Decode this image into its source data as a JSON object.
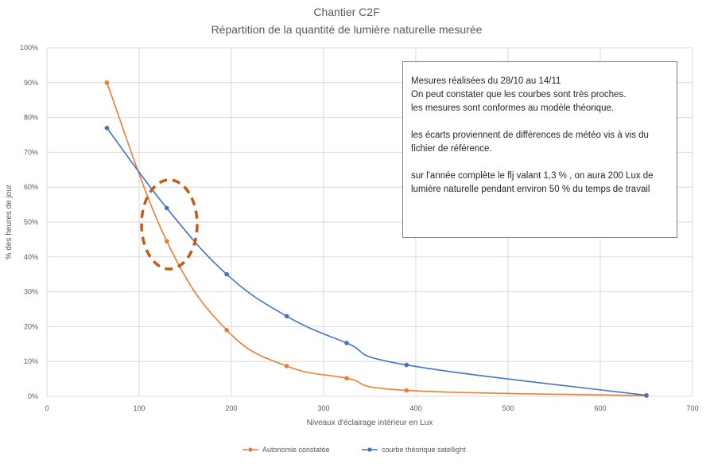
{
  "chart_data": {
    "type": "line",
    "title": "Chantier C2F",
    "subtitle": "Répartition de la quantité de lumière naturelle mesurée",
    "xlabel": "Niveaux d'éclairage intérieur en Lux",
    "ylabel": "% des heures de jour",
    "xlim": [
      0,
      700
    ],
    "ylim": [
      0,
      100
    ],
    "x_ticks": [
      0,
      100,
      200,
      300,
      400,
      500,
      600,
      700
    ],
    "y_ticks": [
      "0%",
      "10%",
      "20%",
      "30%",
      "40%",
      "50%",
      "60%",
      "70%",
      "80%",
      "90%",
      "100%"
    ],
    "grid": true,
    "legend_position": "bottom",
    "series": [
      {
        "name": "Autonomie constatée",
        "color": "#ed7d31",
        "x": [
          65,
          130,
          195,
          260,
          325,
          390,
          650
        ],
        "y": [
          90,
          44.5,
          19,
          8.7,
          5.2,
          1.7,
          0.2
        ]
      },
      {
        "name": "courbe théorique satellight",
        "color": "#4472c4",
        "x": [
          65,
          130,
          195,
          260,
          325,
          390,
          650
        ],
        "y": [
          77,
          54,
          35,
          23,
          15.3,
          9,
          0.3
        ]
      }
    ],
    "annotation": {
      "lines": [
        "Mesures réalisées du 28/10 au 14/11",
        "On peut constater que les courbes sont très proches.",
        "les mesures sont conformes au modèle théorique.",
        "les écarts proviennent de différences de météo vis à vis du fichier de référence.",
        "sur l'année complète le flj valant 1,3 % , on aura 200 Lux de lumière naturelle pendant environ 50 % du temps de travail"
      ],
      "highlight_color": "#c55a11"
    }
  }
}
